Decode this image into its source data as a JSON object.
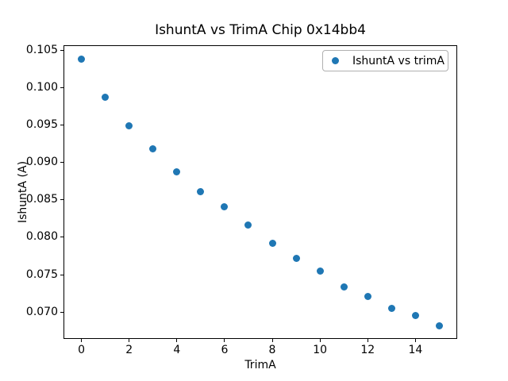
{
  "chart_data": {
    "type": "scatter",
    "title": "IshuntA vs TrimA Chip 0x14bb4",
    "xlabel": "TrimA",
    "ylabel": "IshuntA (A)",
    "legend_entries": [
      "IshuntA vs trimA"
    ],
    "legend_position": "upper right",
    "marker": "circle",
    "marker_color": "#1f77b4",
    "grid": false,
    "x": [
      0,
      1,
      2,
      3,
      4,
      5,
      6,
      7,
      8,
      9,
      10,
      11,
      12,
      13,
      14,
      15
    ],
    "y": [
      0.1038,
      0.0987,
      0.0949,
      0.0918,
      0.0887,
      0.0861,
      0.0841,
      0.0816,
      0.0792,
      0.0772,
      0.0755,
      0.0734,
      0.0721,
      0.0705,
      0.0696,
      0.0682
    ],
    "xlim": [
      -0.75,
      15.75
    ],
    "ylim": [
      0.0664,
      0.1056
    ],
    "xticks": [
      0,
      2,
      4,
      6,
      8,
      10,
      12,
      14
    ],
    "yticks": [
      0.07,
      0.075,
      0.08,
      0.085,
      0.09,
      0.095,
      0.1,
      0.105
    ],
    "ytick_decimals": 3
  }
}
